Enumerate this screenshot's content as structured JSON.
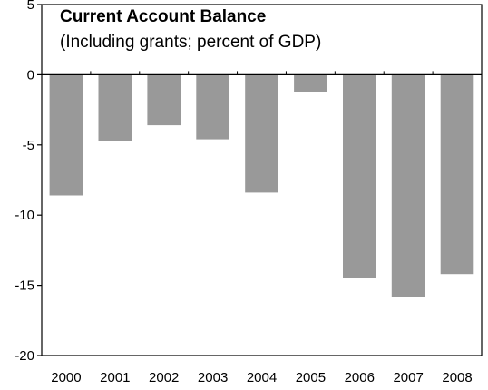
{
  "chart_data": {
    "type": "bar",
    "title": "Current Account Balance",
    "subtitle": "(Including grants; percent of GDP)",
    "categories": [
      "2000",
      "2001",
      "2002",
      "2003",
      "2004",
      "2005",
      "2006",
      "2007",
      "2008"
    ],
    "values": [
      -8.6,
      -4.7,
      -3.6,
      -4.6,
      -8.4,
      -1.2,
      -14.5,
      -15.8,
      -14.2
    ],
    "ylim": [
      -20,
      5
    ],
    "yticks": [
      5,
      0,
      -5,
      -10,
      -15,
      -20
    ],
    "xlabel": "",
    "ylabel": "",
    "grid": false,
    "bar_color": "#999999"
  }
}
